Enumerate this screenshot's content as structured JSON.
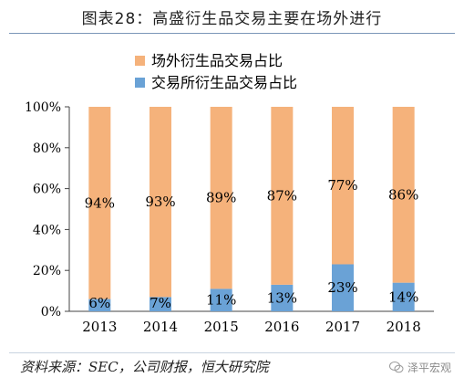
{
  "title": "图表28：高盛衍生品交易主要在场外进行",
  "source": "资料来源：SEC，公司财报，恒大研究院",
  "watermark": "泽平宏观",
  "colors": {
    "otc": "#f5b27b",
    "exchange": "#6aa2d6",
    "axis": "#444444",
    "grid": "#bfbfbf"
  },
  "chart_data": {
    "type": "bar",
    "stacked": true,
    "percent": true,
    "categories": [
      "2013",
      "2014",
      "2015",
      "2016",
      "2017",
      "2018"
    ],
    "series": [
      {
        "name": "交易所衍生品交易占比",
        "values": [
          6,
          7,
          11,
          13,
          23,
          14
        ],
        "labels": [
          "6%",
          "7%",
          "11%",
          "13%",
          "23%",
          "14%"
        ]
      },
      {
        "name": "场外衍生品交易占比",
        "values": [
          94,
          93,
          89,
          87,
          77,
          86
        ],
        "labels": [
          "94%",
          "93%",
          "89%",
          "87%",
          "77%",
          "86%"
        ]
      }
    ],
    "yticks": [
      "0%",
      "20%",
      "40%",
      "60%",
      "80%",
      "100%"
    ],
    "ylim": [
      0,
      100
    ],
    "legend_position": "top",
    "grid": false
  }
}
